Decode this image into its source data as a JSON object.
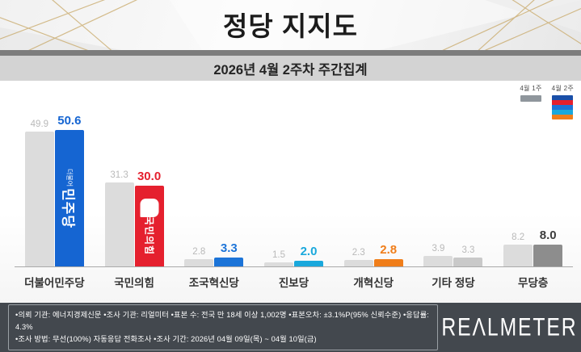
{
  "header": {
    "title": "정당 지지도"
  },
  "subtitle": "2026년 4월 2주차 주간집계",
  "legend": {
    "prev": "4월 1주",
    "curr": "4월 2주"
  },
  "chart_data": {
    "type": "bar",
    "title": "정당 지지도",
    "subtitle": "2026년 4월 2주차 주간집계",
    "unit": "%",
    "categories": [
      "더불어민주당",
      "국민의힘",
      "조국혁신당",
      "진보당",
      "개혁신당",
      "기타 정당",
      "무당층"
    ],
    "series": [
      {
        "name": "4월 1주",
        "values": [
          49.9,
          31.3,
          2.8,
          1.5,
          2.3,
          3.9,
          8.2
        ]
      },
      {
        "name": "4월 2주",
        "values": [
          50.6,
          30.0,
          3.3,
          2.0,
          2.8,
          3.3,
          8.0
        ]
      }
    ],
    "ylim": [
      0,
      55
    ],
    "legend_position": "top-right",
    "prev_bar_color": "#dcdcdc",
    "curr_bar_colors": [
      "#1565d2",
      "#e5202e",
      "#1c74d8",
      "#1aa8dc",
      "#f07e1a",
      "#c9c9c9",
      "#8d8d8d"
    ],
    "prev_label_color": "#b9b9b9",
    "curr_label_colors": [
      "#1565d2",
      "#e5202e",
      "#1c74d8",
      "#1aa8dc",
      "#f07e1a",
      "#b9b9b9",
      "#3d3d3d"
    ],
    "curr_label_bold": [
      true,
      true,
      true,
      true,
      true,
      false,
      true
    ],
    "legend_prev_color": "#8f969c",
    "legend_stack": [
      "#1a4fa8",
      "#e5202e",
      "#1c74d8",
      "#1aa8dc",
      "#f07e1a"
    ],
    "bar_logos": [
      {
        "type": "text",
        "small": "더불어",
        "big": "민주당"
      },
      {
        "type": "speech-bubble",
        "text": "국민의힘"
      },
      null,
      null,
      null,
      null,
      null
    ]
  },
  "footer": {
    "line1": "•의뢰 기관: 에너지경제신문  •조사 기관: 리얼미터 •표본 수: 전국 만 18세 이상 1,002명 •표본오차: ±3.1%P(95% 신뢰수준) •응답률: 4.3%",
    "line2": "•조사 방법: 무선(100%) 자동응답 전화조사 •조사 기간: 2026년 04월 09일(목) ~ 04월 10일(금)",
    "logo": "REΛLMETER"
  }
}
